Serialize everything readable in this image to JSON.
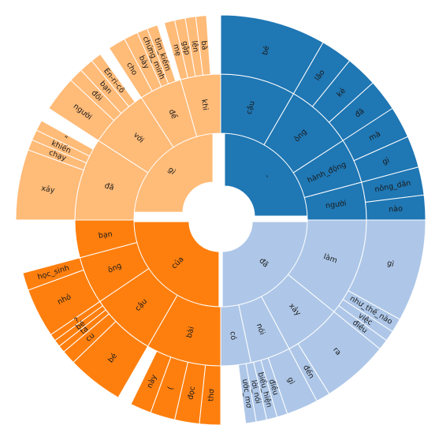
{
  "chart_data": {
    "type": "sunburst",
    "title": "",
    "colors": {
      "dark_blue": "#1f77b4",
      "light_blue": "#aec7e8",
      "dark_orange": "#ff7f0e",
      "light_orange": "#ffbb78"
    },
    "rings": [
      {
        "ring": 1,
        "segments": [
          {
            "label": ",",
            "start": 0,
            "end": 90,
            "color": "dark_blue"
          },
          {
            "label": "đã",
            "start": 90,
            "end": 180,
            "color": "light_blue"
          },
          {
            "label": "của",
            "start": 180,
            "end": 270,
            "color": "dark_orange"
          },
          {
            "label": "gì",
            "start": 270,
            "end": 360,
            "color": "light_orange"
          }
        ]
      },
      {
        "ring": 2,
        "segments": [
          {
            "label": "cậu",
            "start": 0,
            "end": 30,
            "color": "dark_blue"
          },
          {
            "label": "ông",
            "start": 30,
            "end": 57,
            "color": "dark_blue"
          },
          {
            "label": "hành_động",
            "start": 57,
            "end": 75,
            "color": "dark_blue"
          },
          {
            "label": "người",
            "start": 75,
            "end": 90,
            "color": "dark_blue"
          },
          {
            "label": "làm",
            "start": 90,
            "end": 129,
            "color": "light_blue"
          },
          {
            "label": "xảy",
            "start": 129,
            "end": 152,
            "color": "light_blue"
          },
          {
            "label": "nói",
            "start": 152,
            "end": 168,
            "color": "light_blue"
          },
          {
            "label": "có",
            "start": 168,
            "end": 180,
            "color": "light_blue"
          },
          {
            "label": "bài",
            "start": 180,
            "end": 210,
            "color": "dark_orange"
          },
          {
            "label": "cậu",
            "start": 210,
            "end": 236,
            "color": "dark_orange"
          },
          {
            "label": "ông",
            "start": 236,
            "end": 255,
            "color": "dark_orange"
          },
          {
            "label": "bạn",
            "start": 255,
            "end": 270,
            "color": "dark_orange"
          },
          {
            "label": "đã",
            "start": 270,
            "end": 303,
            "color": "light_orange"
          },
          {
            "label": "với",
            "start": 303,
            "end": 327,
            "color": "light_orange"
          },
          {
            "label": "để",
            "start": 327,
            "end": 344,
            "color": "light_orange"
          },
          {
            "label": "khi",
            "start": 344,
            "end": 360,
            "color": "light_orange"
          }
        ]
      },
      {
        "ring": 3,
        "segments": [
          {
            "label": "bé",
            "start": 0,
            "end": 30,
            "color": "dark_blue"
          },
          {
            "label": "lão",
            "start": 30,
            "end": 39,
            "color": "dark_blue"
          },
          {
            "label": "kẻ",
            "start": 39,
            "end": 48,
            "color": "dark_blue"
          },
          {
            "label": "đã",
            "start": 48,
            "end": 57,
            "color": "dark_blue"
          },
          {
            "label": "mà",
            "start": 57,
            "end": 66,
            "color": "dark_blue"
          },
          {
            "label": "gì",
            "start": 66,
            "end": 75,
            "color": "dark_blue"
          },
          {
            "label": "nông_dân",
            "start": 75,
            "end": 83,
            "color": "dark_blue"
          },
          {
            "label": "nào",
            "start": 83,
            "end": 90,
            "color": "dark_blue"
          },
          {
            "label": "gì",
            "start": 90,
            "end": 119,
            "color": "light_blue"
          },
          {
            "label": "như_thế_nào",
            "start": 119,
            "end": 123,
            "color": "light_blue"
          },
          {
            "label": "việc",
            "start": 123,
            "end": 126,
            "color": "light_blue"
          },
          {
            "label": "điều",
            "start": 126,
            "end": 129,
            "color": "light_blue"
          },
          {
            "label": "ra",
            "start": 129,
            "end": 148,
            "color": "light_blue"
          },
          {
            "label": "đến",
            "start": 148,
            "end": 152,
            "color": "light_blue"
          },
          {
            "label": "gì",
            "start": 152,
            "end": 161,
            "color": "light_blue"
          },
          {
            "label": "điều",
            "start": 161,
            "end": 164,
            "color": "light_blue"
          },
          {
            "label": "biểu_hiện",
            "start": 164,
            "end": 167,
            "color": "light_blue"
          },
          {
            "label": "lời_nói",
            "start": 167,
            "end": 170,
            "color": "light_blue"
          },
          {
            "label": "ước_mơ",
            "start": 170,
            "end": 173,
            "color": "light_blue"
          },
          {
            "label": "thơ",
            "start": 180,
            "end": 186,
            "color": "dark_orange"
          },
          {
            "label": "đọc",
            "start": 186,
            "end": 193,
            "color": "dark_orange"
          },
          {
            "label": "(",
            "start": 193,
            "end": 200,
            "color": "dark_orange"
          },
          {
            "label": "này",
            "start": 200,
            "end": 206,
            "color": "dark_orange"
          },
          {
            "label": "bé",
            "start": 210,
            "end": 226,
            "color": "dark_orange"
          },
          {
            "label": "cu",
            "start": 226,
            "end": 230,
            "color": "dark_orange"
          },
          {
            "label": "ta",
            "start": 230,
            "end": 232,
            "color": "dark_orange"
          },
          {
            "label": "bé",
            "start": 232,
            "end": 234,
            "color": "dark_orange"
          },
          {
            "label": "?",
            "start": 234,
            "end": 236,
            "color": "dark_orange"
          },
          {
            "label": "nhỏ",
            "start": 236,
            "end": 250,
            "color": "dark_orange"
          },
          {
            "label": "học_sinh",
            "start": 250,
            "end": 255,
            "color": "dark_orange"
          },
          {
            "label": "xảy",
            "start": 270,
            "end": 290,
            "color": "light_orange"
          },
          {
            "label": "chạy",
            "start": 290,
            "end": 293,
            "color": "light_orange"
          },
          {
            "label": "khiến",
            "start": 293,
            "end": 296,
            "color": "light_orange"
          },
          {
            "label": "\"",
            "start": 296,
            "end": 299,
            "color": "light_orange"
          },
          {
            "label": "người",
            "start": 303,
            "end": 313,
            "color": "light_orange"
          },
          {
            "label": "đôi",
            "start": 313,
            "end": 317,
            "color": "light_orange"
          },
          {
            "label": "bạn",
            "start": 317,
            "end": 321,
            "color": "light_orange"
          },
          {
            "label": "En-ri-cô",
            "start": 321,
            "end": 324,
            "color": "light_orange"
          },
          {
            "label": "cho",
            "start": 327,
            "end": 332,
            "color": "light_orange"
          },
          {
            "label": "bày",
            "start": 332,
            "end": 336,
            "color": "light_orange"
          },
          {
            "label": "chứng_minh",
            "start": 336,
            "end": 339,
            "color": "light_orange"
          },
          {
            "label": "tìm_kiếm",
            "start": 339,
            "end": 342,
            "color": "light_orange"
          },
          {
            "label": "mẹ",
            "start": 344,
            "end": 347,
            "color": "light_orange"
          },
          {
            "label": "gặp",
            "start": 347,
            "end": 350,
            "color": "light_orange"
          },
          {
            "label": "lên",
            "start": 350,
            "end": 353,
            "color": "light_orange"
          },
          {
            "label": "bà",
            "start": 353,
            "end": 356,
            "color": "light_orange"
          }
        ]
      }
    ]
  }
}
